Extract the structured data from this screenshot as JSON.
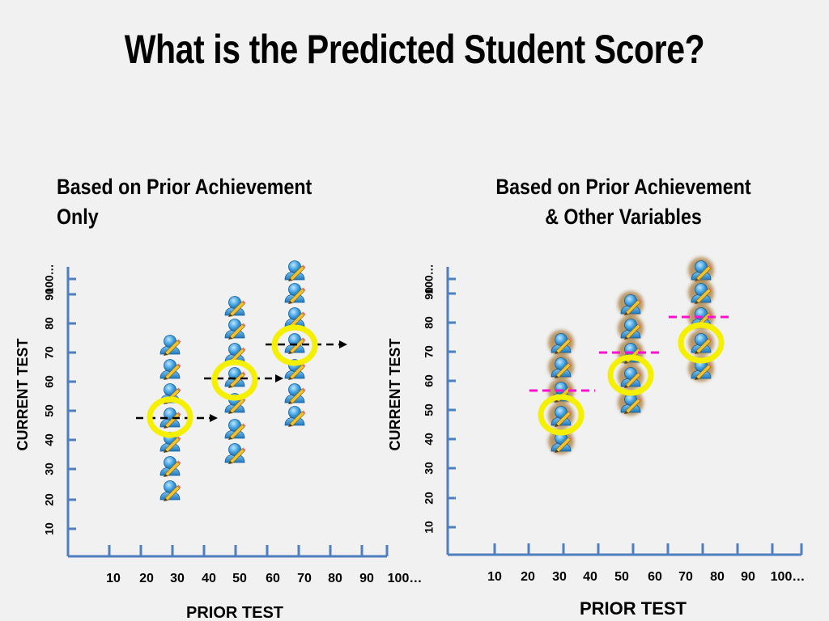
{
  "title": "What is the Predicted Student Score?",
  "left_panel": {
    "subtitle_line1": "Based on Prior Achievement",
    "subtitle_line2": "Only",
    "ylabel": "CURRENT TEST",
    "xlabel": "PRIOR TEST",
    "yticks": [
      "10",
      "20",
      "30",
      "40",
      "50",
      "60",
      "70",
      "80",
      "90",
      "100…"
    ],
    "xticks": [
      "10",
      "20",
      "30",
      "40",
      "50",
      "60",
      "70",
      "80",
      "90",
      "100…"
    ]
  },
  "right_panel": {
    "subtitle_line1": "Based on Prior Achievement",
    "subtitle_line2": "& Other Variables",
    "ylabel": "CURRENT TEST",
    "xlabel": "PRIOR TEST",
    "yticks": [
      "10",
      "20",
      "30",
      "40",
      "50",
      "60",
      "70",
      "80",
      "90",
      "100…"
    ],
    "xticks": [
      "10",
      "20",
      "30",
      "40",
      "50",
      "60",
      "70",
      "80",
      "90",
      "100…"
    ]
  },
  "colors": {
    "axis": "#4f7fc0",
    "highlight": "#f5ef00",
    "arrow": "#000000",
    "dash_magenta": "#ff10d0",
    "student_blue": "#3ea0e0"
  },
  "icons": {
    "student": "student-with-pencil-icon"
  }
}
